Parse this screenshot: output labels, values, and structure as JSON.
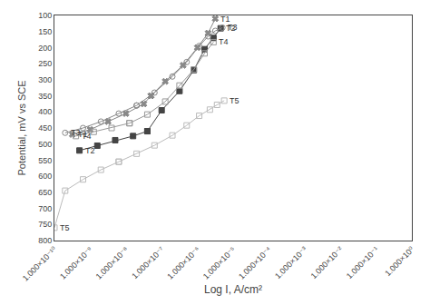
{
  "chart_data": {
    "type": "line",
    "xlabel": "Log I, A/cm²",
    "ylabel": "Potential, mV vs SCE",
    "log": "x",
    "grid": false,
    "xlim": [
      1e-10,
      1
    ],
    "ylim": [
      800,
      100
    ],
    "xticks": [
      {
        "value": 1e-10,
        "label": "1.000×10⁻¹⁰"
      },
      {
        "value": 1e-09,
        "label": "1.000×10⁻⁹"
      },
      {
        "value": 1e-08,
        "label": "1.000×10⁻⁸"
      },
      {
        "value": 1e-07,
        "label": "1.000×10⁻⁷"
      },
      {
        "value": 1e-06,
        "label": "1.000×10⁻⁶"
      },
      {
        "value": 1e-05,
        "label": "1.000×10⁻⁵"
      },
      {
        "value": 0.0001,
        "label": "1.000×10⁻⁴"
      },
      {
        "value": 0.001,
        "label": "1.000×10⁻³"
      },
      {
        "value": 0.01,
        "label": "1.000×10⁻²"
      },
      {
        "value": 0.1,
        "label": "1.000×10⁻¹"
      },
      {
        "value": 1,
        "label": "1.000×10⁰"
      }
    ],
    "yticks": [
      100,
      150,
      200,
      250,
      300,
      350,
      400,
      450,
      500,
      550,
      600,
      650,
      700,
      750,
      800
    ],
    "series": [
      {
        "name": "T1",
        "color": "#888888",
        "marker": "x",
        "x": [
          3.1622776601683795e-10,
          1e-09,
          3.1622776601683795e-09,
          1e-08,
          3.162277660168379e-08,
          5.011872336272722e-08,
          5.011872336272722e-08,
          1.2589254117941672e-07,
          3.981071705534972e-07,
          1e-06,
          1.9952623149688796e-06,
          3.1622776601683796e-06
        ],
        "values": [
          470,
          455,
          430,
          405,
          375,
          350,
          350,
          305,
          255,
          200,
          155,
          110
        ]
      },
      {
        "name": "T2",
        "color": "#444444",
        "marker": "square",
        "x": [
          5.011872336272722e-10,
          1.5848931924611136e-09,
          5.011872336272722e-09,
          1.5848931924611136e-08,
          3.981071705534972e-08,
          3.981071705534972e-08,
          1e-07,
          3.1622776601683797e-07,
          7.943282347242816e-07,
          1.5848931924611137e-06,
          2.818382931264454e-06,
          4.466835921509632e-06
        ],
        "values": [
          520,
          505,
          488,
          475,
          460,
          460,
          395,
          335,
          270,
          205,
          170,
          140
        ]
      },
      {
        "name": "T3",
        "color": "#888888",
        "marker": "circle-open",
        "x": [
          1.9952623149688795e-10,
          6.309573444801933e-10,
          1.9952623149688795e-09,
          6.309573444801933e-09,
          1.9952623149688796e-08,
          1.9952623149688796e-08,
          6.309573444801934e-08,
          1.9952623149688795e-07,
          5.011872336272722e-07,
          1.1220184543019633e-06,
          1.9952623149688796e-06,
          3.1622776601683796e-06,
          5.011872336272722e-06
        ],
        "values": [
          465,
          450,
          430,
          405,
          380,
          380,
          340,
          290,
          245,
          195,
          165,
          148,
          138
        ]
      },
      {
        "name": "T4",
        "color": "#999999",
        "marker": "square-open",
        "x": [
          3.981071705534972e-10,
          1.2589254117941673e-09,
          3.981071705534972e-09,
          1.2589254117941673e-08,
          1.2589254117941673e-08,
          3.981071705534972e-08,
          1.2589254117941672e-07,
          3.1622776601683797e-07,
          7.943282347242816e-07,
          1.5848931924611137e-06,
          2.818382931264454e-06
        ],
        "values": [
          475,
          462,
          450,
          435,
          435,
          408,
          368,
          318,
          268,
          218,
          183
        ]
      },
      {
        "name": "T5",
        "color": "#bbbbbb",
        "marker": "square-open",
        "x": [
          1e-10,
          1.9952623149688795e-10,
          6.309573444801933e-10,
          1.9952623149688795e-09,
          6.309573444801933e-09,
          6.309573444801933e-09,
          1.9952623149688796e-08,
          6.309573444801934e-08,
          1.9952623149688795e-07,
          5.011872336272722e-07,
          1.1220184543019633e-06,
          2.2387211385683393e-06,
          3.548133892335755e-06,
          5.623413251903491e-06
        ],
        "values": [
          760,
          645,
          610,
          580,
          555,
          555,
          530,
          504,
          473,
          442,
          412,
          393,
          378,
          365
        ]
      }
    ]
  }
}
